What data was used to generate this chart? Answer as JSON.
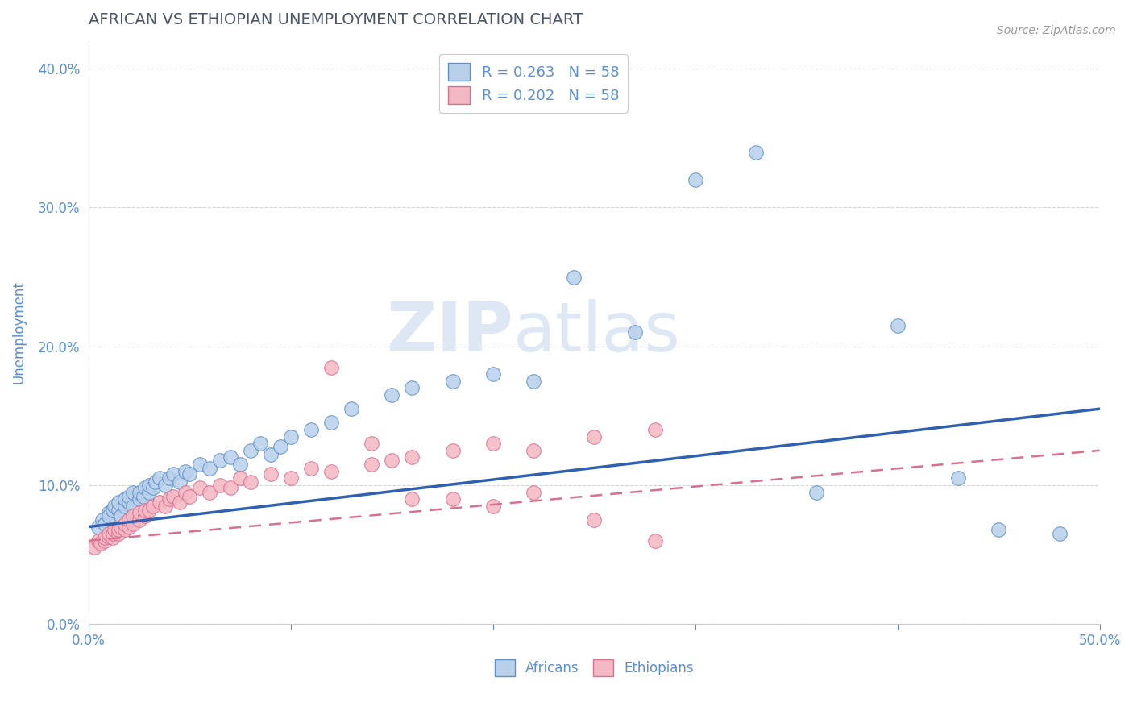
{
  "title": "AFRICAN VS ETHIOPIAN UNEMPLOYMENT CORRELATION CHART",
  "source": "Source: ZipAtlas.com",
  "ylabel": "Unemployment",
  "watermark_zip": "ZIP",
  "watermark_atlas": "atlas",
  "legend_african_label": "R = 0.263   N = 58",
  "legend_ethiopian_label": "R = 0.202   N = 58",
  "legend_africans": "Africans",
  "legend_ethiopians": "Ethiopians",
  "african_fill": "#b8d0ea",
  "african_edge": "#6090c8",
  "ethiopian_fill": "#f4b8c4",
  "ethiopian_edge": "#d87090",
  "african_line_color": "#3060b0",
  "ethiopian_line_color": "#d87090",
  "title_color": "#4a5568",
  "axis_color": "#5b8fd4",
  "grid_color": "#cccccc",
  "background_color": "#ffffff",
  "xlim": [
    0.0,
    0.5
  ],
  "ylim": [
    0.0,
    0.42
  ],
  "african_scatter_x": [
    0.005,
    0.007,
    0.008,
    0.01,
    0.01,
    0.012,
    0.013,
    0.015,
    0.015,
    0.016,
    0.018,
    0.018,
    0.02,
    0.02,
    0.022,
    0.022,
    0.025,
    0.025,
    0.027,
    0.028,
    0.03,
    0.03,
    0.032,
    0.033,
    0.035,
    0.038,
    0.04,
    0.042,
    0.045,
    0.048,
    0.05,
    0.055,
    0.06,
    0.065,
    0.07,
    0.075,
    0.08,
    0.085,
    0.09,
    0.095,
    0.1,
    0.11,
    0.12,
    0.13,
    0.15,
    0.16,
    0.18,
    0.2,
    0.22,
    0.24,
    0.27,
    0.3,
    0.33,
    0.36,
    0.4,
    0.43,
    0.45,
    0.48
  ],
  "african_scatter_y": [
    0.07,
    0.075,
    0.072,
    0.08,
    0.078,
    0.082,
    0.085,
    0.082,
    0.088,
    0.078,
    0.085,
    0.09,
    0.088,
    0.092,
    0.085,
    0.095,
    0.09,
    0.095,
    0.092,
    0.098,
    0.095,
    0.1,
    0.098,
    0.102,
    0.105,
    0.1,
    0.105,
    0.108,
    0.102,
    0.11,
    0.108,
    0.115,
    0.112,
    0.118,
    0.12,
    0.115,
    0.125,
    0.13,
    0.122,
    0.128,
    0.135,
    0.14,
    0.145,
    0.155,
    0.165,
    0.17,
    0.175,
    0.18,
    0.175,
    0.25,
    0.21,
    0.32,
    0.34,
    0.095,
    0.215,
    0.105,
    0.068,
    0.065
  ],
  "ethiopian_scatter_x": [
    0.003,
    0.005,
    0.006,
    0.008,
    0.008,
    0.01,
    0.01,
    0.012,
    0.012,
    0.013,
    0.015,
    0.015,
    0.016,
    0.018,
    0.018,
    0.02,
    0.02,
    0.022,
    0.022,
    0.025,
    0.025,
    0.028,
    0.028,
    0.03,
    0.032,
    0.035,
    0.038,
    0.04,
    0.042,
    0.045,
    0.048,
    0.05,
    0.055,
    0.06,
    0.065,
    0.07,
    0.075,
    0.08,
    0.09,
    0.1,
    0.11,
    0.12,
    0.14,
    0.15,
    0.16,
    0.18,
    0.2,
    0.22,
    0.25,
    0.28,
    0.12,
    0.14,
    0.16,
    0.18,
    0.2,
    0.22,
    0.25,
    0.28
  ],
  "ethiopian_scatter_y": [
    0.055,
    0.06,
    0.058,
    0.06,
    0.062,
    0.063,
    0.065,
    0.062,
    0.065,
    0.068,
    0.065,
    0.068,
    0.07,
    0.068,
    0.072,
    0.07,
    0.075,
    0.072,
    0.078,
    0.075,
    0.08,
    0.078,
    0.082,
    0.082,
    0.085,
    0.088,
    0.085,
    0.09,
    0.092,
    0.088,
    0.095,
    0.092,
    0.098,
    0.095,
    0.1,
    0.098,
    0.105,
    0.102,
    0.108,
    0.105,
    0.112,
    0.11,
    0.115,
    0.118,
    0.12,
    0.125,
    0.13,
    0.125,
    0.135,
    0.14,
    0.185,
    0.13,
    0.09,
    0.09,
    0.085,
    0.095,
    0.075,
    0.06
  ],
  "african_line_x0": 0.0,
  "african_line_x1": 0.5,
  "african_line_y0": 0.07,
  "african_line_y1": 0.155,
  "ethiopian_line_x0": 0.0,
  "ethiopian_line_x1": 0.5,
  "ethiopian_line_y0": 0.06,
  "ethiopian_line_y1": 0.125
}
